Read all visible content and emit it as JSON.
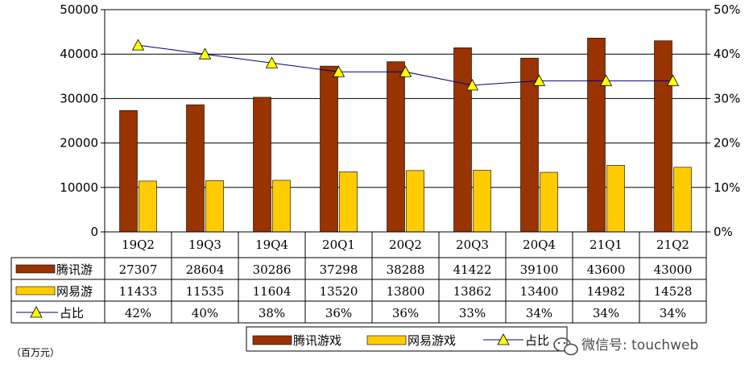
{
  "chart_data": {
    "type": "bar",
    "categories": [
      "19Q2",
      "19Q3",
      "19Q4",
      "20Q1",
      "20Q2",
      "20Q3",
      "20Q4",
      "21Q1",
      "21Q2"
    ],
    "series": [
      {
        "name": "腾讯游",
        "legend_name": "腾讯游戏",
        "type": "bar",
        "color": "#993300",
        "values": [
          27307,
          28604,
          30286,
          37298,
          38288,
          41422,
          39100,
          43600,
          43000
        ]
      },
      {
        "name": "网易游",
        "legend_name": "网易游戏",
        "type": "bar",
        "color": "#FFCC00",
        "values": [
          11433,
          11535,
          11604,
          13520,
          13800,
          13862,
          13400,
          14982,
          14528
        ]
      },
      {
        "name": "占比",
        "legend_name": "占比",
        "type": "line",
        "axis": "right",
        "color": "#FFFF00",
        "values": [
          42,
          40,
          38,
          36,
          36,
          33,
          34,
          34,
          34
        ],
        "labels": [
          "42%",
          "40%",
          "38%",
          "36%",
          "36%",
          "33%",
          "34%",
          "34%",
          "34%"
        ]
      }
    ],
    "y_left": {
      "min": 0,
      "max": 50000,
      "ticks": [
        "0",
        "10000",
        "20000",
        "30000",
        "40000",
        "50000"
      ]
    },
    "y_right": {
      "min": 0,
      "max": 50,
      "ticks": [
        "0%",
        "10%",
        "20%",
        "30%",
        "40%",
        "50%"
      ]
    },
    "grid": "horizontal",
    "legend": "bottom-right"
  },
  "unit_label": "（百万元）",
  "watermark": {
    "icon": "wechat-icon",
    "text": "微信号: touchweb"
  }
}
